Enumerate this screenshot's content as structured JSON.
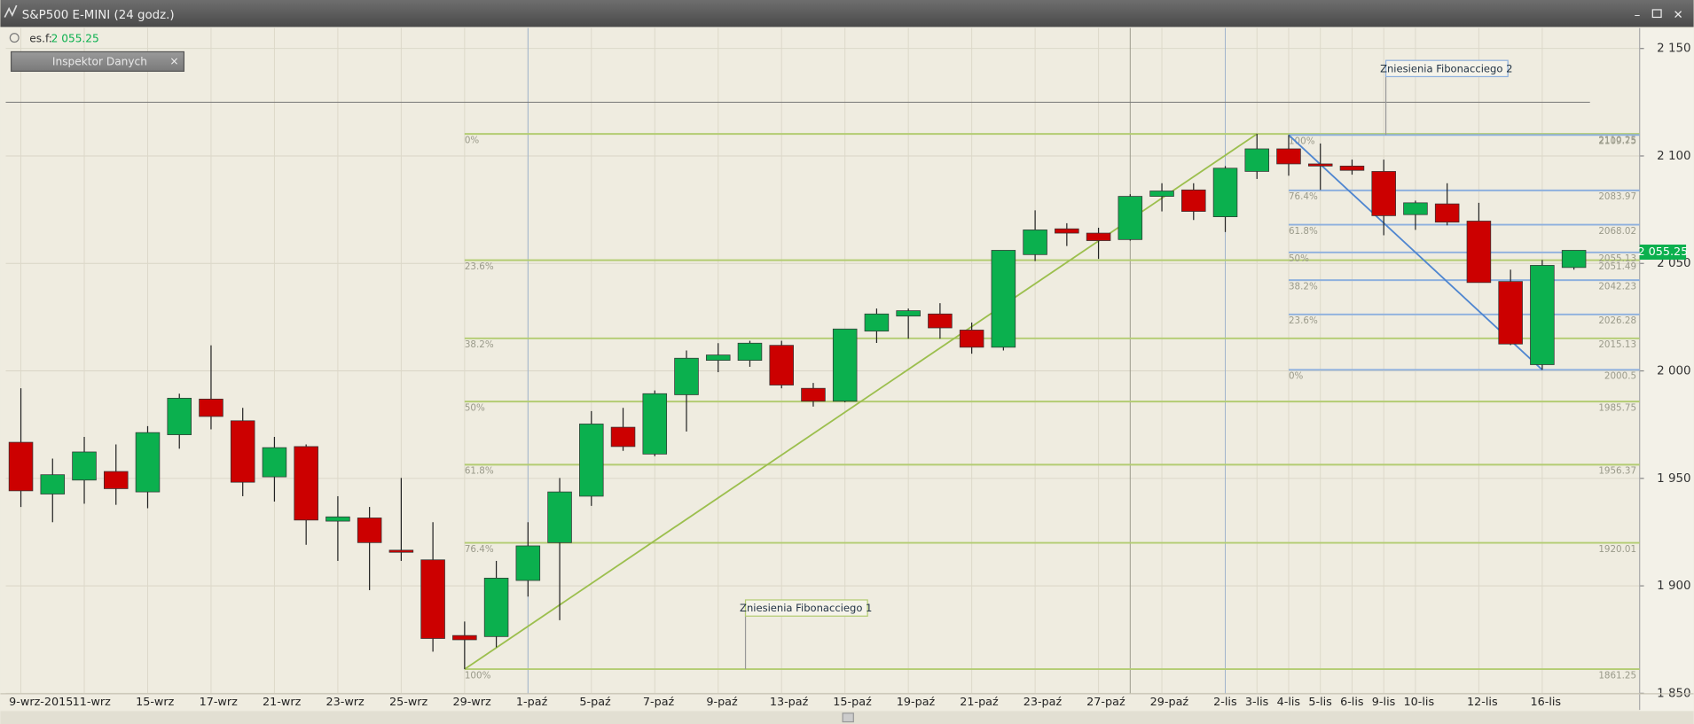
{
  "window_title": "S&P500 E-MINI (24 godz.)",
  "symbol": "es.f:",
  "inspector": "Inspektor Danych",
  "chart_data": {
    "type": "candlestick",
    "categories": [
      "9-wrz-2015",
      null,
      "11-wrz",
      null,
      "15-wrz",
      null,
      "17-wrz",
      null,
      "21-wrz",
      null,
      "23-wrz",
      null,
      "25-wrz",
      null,
      "29-wrz",
      null,
      "1-paź",
      null,
      "5-paź",
      null,
      "7-paź",
      null,
      "9-paź",
      null,
      "13-paź",
      null,
      "15-paź",
      null,
      "19-paź",
      null,
      "21-paź",
      null,
      "23-paź",
      null,
      "27-paź",
      null,
      "29-paź",
      null,
      "2-lis",
      "3-lis",
      "4-lis",
      "5-lis",
      "6-lis",
      "9-lis",
      "10-lis",
      null,
      "12-lis",
      null,
      "16-lis",
      null
    ],
    "open": [
      1966.8,
      1942.7,
      1949.2,
      1953.2,
      1943.7,
      1970.3,
      1986.9,
      1976.8,
      1950.7,
      1964.8,
      1930.1,
      1931.6,
      1916.6,
      1912.1,
      1876.9,
      1876.4,
      1902.5,
      1920.1,
      1941.7,
      1973.8,
      1961.3,
      1988.9,
      2004.9,
      2004.9,
      2011.9,
      1991.9,
      1985.9,
      2018.5,
      2025.5,
      2026.5,
      2019.0,
      2011.0,
      2054.1,
      2066.1,
      2064.1,
      2061.1,
      2081.2,
      2084.2,
      2071.7,
      2092.8,
      2103.3,
      2096.3,
      2095.3,
      2092.8,
      2072.7,
      2077.7,
      2069.7,
      2041.6,
      2002.9,
      2048.1
    ],
    "high": [
      1991.9,
      1959.2,
      1969.3,
      1965.8,
      1974.3,
      1989.4,
      2011.9,
      1982.8,
      1969.3,
      1965.8,
      1941.7,
      1936.7,
      1950.2,
      1929.6,
      1883.4,
      1911.6,
      1929.6,
      1950.2,
      1981.3,
      1982.8,
      1990.9,
      2009.5,
      2012.9,
      2014.0,
      2014.0,
      1994.4,
      2019.5,
      2029.0,
      2029.0,
      2031.5,
      2022.5,
      2056.1,
      2074.7,
      2068.7,
      2066.6,
      2082.2,
      2087.3,
      2087.3,
      2095.3,
      2110.25,
      2109.75,
      2105.8,
      2098.3,
      2098.3,
      2079.2,
      2087.3,
      2078.2,
      2047.1,
      2051.6,
      2056.1
    ],
    "low": [
      1936.7,
      1929.6,
      1938.2,
      1937.7,
      1936.1,
      1963.8,
      1972.8,
      1941.7,
      1939.2,
      1919.1,
      1911.6,
      1898.0,
      1911.6,
      1869.4,
      1861.25,
      1871.4,
      1895.0,
      1884.0,
      1937.2,
      1962.8,
      1960.3,
      1971.8,
      1999.4,
      2001.9,
      1991.9,
      1983.4,
      1985.4,
      2013.0,
      2015.0,
      2015.0,
      2008.0,
      2009.5,
      2051.1,
      2058.1,
      2052.1,
      2060.6,
      2074.2,
      2070.2,
      2064.6,
      2089.3,
      2090.8,
      2084.2,
      2091.3,
      2063.1,
      2065.6,
      2067.7,
      2041.1,
      2012.0,
      2000.5,
      2047.1
    ],
    "close": [
      1944.2,
      1951.7,
      1962.3,
      1945.2,
      1971.3,
      1987.3,
      1978.8,
      1948.2,
      1964.3,
      1930.6,
      1932.1,
      1920.1,
      1915.6,
      1875.5,
      1874.9,
      1903.6,
      1918.6,
      1943.7,
      1975.3,
      1964.8,
      1989.4,
      2005.9,
      2007.4,
      2012.9,
      1993.4,
      1985.9,
      2019.5,
      2026.5,
      2028.0,
      2020.0,
      2011.0,
      2056.1,
      2065.6,
      2064.1,
      2060.6,
      2081.2,
      2083.7,
      2074.2,
      2094.3,
      2103.3,
      2096.3,
      2095.3,
      2093.3,
      2072.2,
      2078.2,
      2069.2,
      2041.1,
      2012.5,
      2049.1,
      2056.1
    ],
    "up_color": "#0bb04e",
    "down_color": "#cc0000",
    "ylim": [
      1842.25,
      2159.5
    ],
    "yticks": [
      {
        "value": 1850,
        "label": "1 850"
      },
      {
        "value": 1900,
        "label": "1 900"
      },
      {
        "value": 1950,
        "label": "1 950"
      },
      {
        "value": 2000,
        "label": "2 000"
      },
      {
        "value": 2050,
        "label": "2 050"
      },
      {
        "value": 2100,
        "label": "2 100"
      },
      {
        "value": 2150,
        "label": "2 150"
      }
    ],
    "grid": true,
    "last_price": {
      "value": 2055.25,
      "label": "2 055.25"
    },
    "last_price_color": "#0bb04e",
    "horizontal_line": 2125,
    "fibonacci": [
      {
        "name": "Zniesienia Fibonacciego 1",
        "color": "#b3cc72",
        "levels": [
          {
            "label": "0%",
            "price": 2110.25
          },
          {
            "label": "23.6%",
            "price": 2051.49
          },
          {
            "label": "38.2%",
            "price": 2015.13
          },
          {
            "label": "50%",
            "price": 1985.75
          },
          {
            "label": "61.8%",
            "price": 1956.37
          },
          {
            "label": "76.4%",
            "price": 1920.01
          },
          {
            "label": "100%",
            "price": 1861.25
          }
        ]
      },
      {
        "name": "Zniesienia Fibonacciego 2",
        "color": "#8eb0de",
        "levels": [
          {
            "label": "100%",
            "price": 2109.75
          },
          {
            "label": "76.4%",
            "price": 2083.97
          },
          {
            "label": "61.8%",
            "price": 2068.02
          },
          {
            "label": "50%",
            "price": 2055.13
          },
          {
            "label": "38.2%",
            "price": 2042.23
          },
          {
            "label": "23.6%",
            "price": 2026.28
          },
          {
            "label": "0%",
            "price": 2000.5
          }
        ]
      }
    ]
  }
}
